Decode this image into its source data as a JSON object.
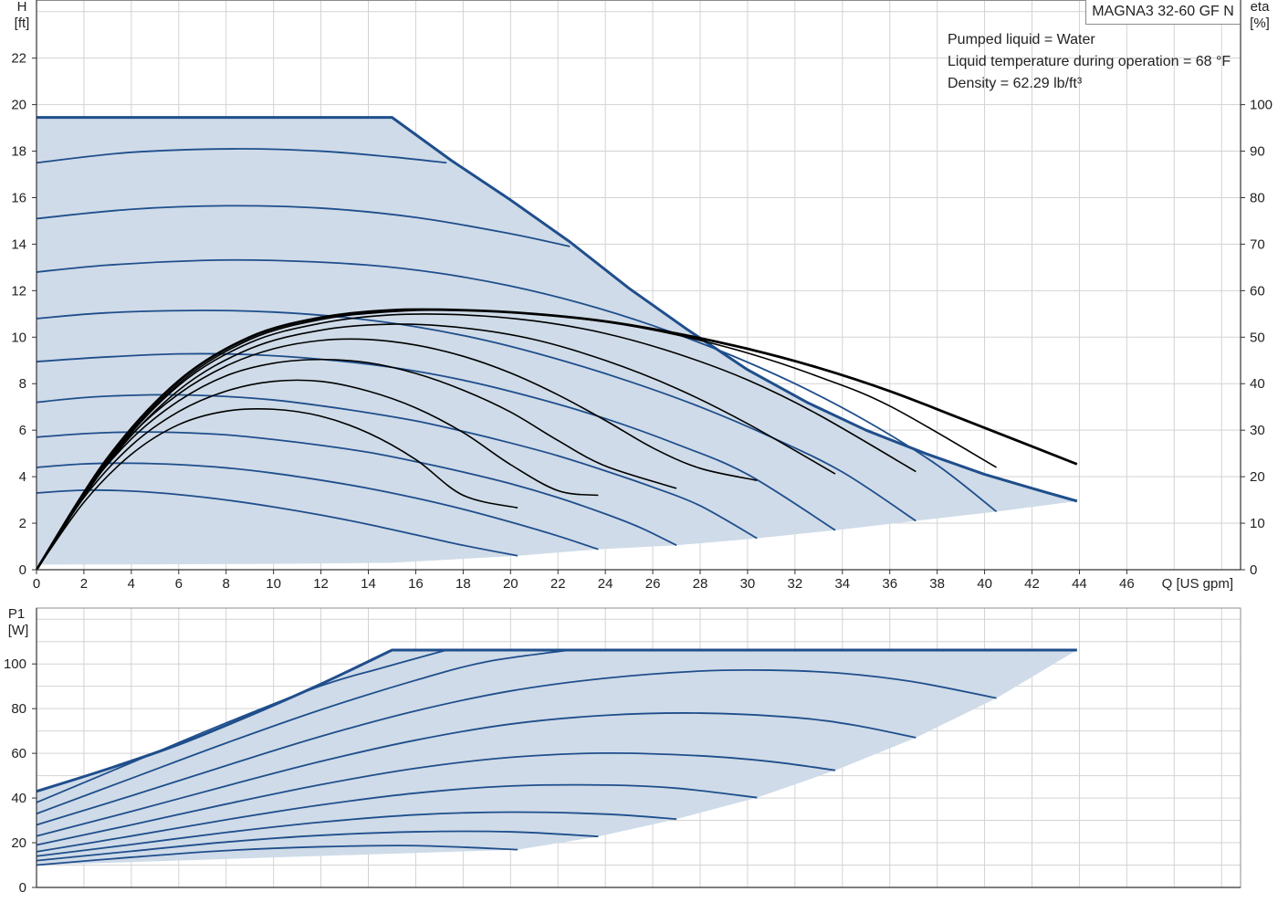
{
  "model": "MAGNA3 32-60 GF N",
  "conditions": [
    "Pumped liquid = Water",
    "Liquid temperature during operation = 68 °F",
    "Density = 62.29 lb/ft³"
  ],
  "colors": {
    "curve": "#1f4e8c",
    "fill": "#cfdbe8",
    "eff_curve": "#000000",
    "grid": "#d3d3d3",
    "frame": "#8c8c8c"
  },
  "chart_data": [
    {
      "type": "line",
      "name": "head",
      "ylabel_lines": [
        "H",
        "[ft]"
      ],
      "y2label_lines": [
        "eta",
        "[%]"
      ],
      "xlabel": "Q [US gpm]",
      "x_ticks": [
        "0",
        "2",
        "4",
        "6",
        "8",
        "10",
        "12",
        "14",
        "16",
        "18",
        "20",
        "22",
        "24",
        "26",
        "28",
        "30",
        "32",
        "34",
        "36",
        "38",
        "40",
        "42",
        "44",
        "46"
      ],
      "y_ticks": [
        "0",
        "2",
        "4",
        "6",
        "8",
        "10",
        "12",
        "14",
        "16",
        "18",
        "20",
        "22"
      ],
      "y2_ticks": [
        "0",
        "10",
        "20",
        "30",
        "40",
        "50",
        "60",
        "70",
        "80",
        "90",
        "100"
      ],
      "xlim": [
        0,
        50.8
      ],
      "ylim": [
        0,
        24.5
      ],
      "y2lim": [
        0,
        122.5
      ],
      "grid": true,
      "max_curve": [
        [
          0,
          19.45
        ],
        [
          15.0,
          19.45
        ],
        [
          17.5,
          17.6
        ],
        [
          20,
          15.9
        ],
        [
          22.5,
          14.1
        ],
        [
          25,
          12.1
        ],
        [
          27.5,
          10.3
        ],
        [
          30,
          8.6
        ],
        [
          32.5,
          7.2
        ],
        [
          35,
          6.0
        ],
        [
          37.5,
          5.0
        ],
        [
          40,
          4.1
        ],
        [
          42,
          3.5
        ],
        [
          43.9,
          2.95
        ]
      ],
      "min_curve": [
        [
          0,
          0.22
        ],
        [
          5,
          0.23
        ],
        [
          10,
          0.25
        ],
        [
          15,
          0.3
        ],
        [
          20.3,
          0.6
        ],
        [
          23.7,
          0.88
        ],
        [
          27,
          1.05
        ],
        [
          30.4,
          1.35
        ],
        [
          33.7,
          1.7
        ],
        [
          37.1,
          2.1
        ],
        [
          40.5,
          2.5
        ],
        [
          43.9,
          2.95
        ]
      ],
      "series": [
        {
          "name": "",
          "x": [
            0,
            2,
            4,
            6,
            8,
            10,
            12,
            14,
            16,
            18,
            20.3
          ],
          "y": [
            3.3,
            3.42,
            3.38,
            3.23,
            3.0,
            2.7,
            2.35,
            1.95,
            1.5,
            1.05,
            0.6
          ]
        },
        {
          "name": "",
          "x": [
            0,
            2,
            4,
            6,
            8,
            10,
            12,
            14,
            16,
            18,
            20,
            22,
            23.7
          ],
          "y": [
            4.4,
            4.55,
            4.58,
            4.52,
            4.38,
            4.15,
            3.85,
            3.5,
            3.08,
            2.6,
            2.05,
            1.45,
            0.88
          ]
        },
        {
          "name": "",
          "x": [
            0,
            2,
            4,
            6,
            8,
            10,
            12,
            14,
            16,
            18,
            20,
            22,
            24,
            25.5,
            27
          ],
          "y": [
            5.7,
            5.85,
            5.92,
            5.9,
            5.8,
            5.6,
            5.35,
            5.05,
            4.65,
            4.2,
            3.7,
            3.1,
            2.4,
            1.8,
            1.05
          ]
        },
        {
          "name": "",
          "x": [
            0,
            2,
            4,
            6,
            8,
            10,
            12,
            14,
            16,
            18,
            20,
            22,
            24,
            26,
            28,
            30.4
          ],
          "y": [
            7.2,
            7.4,
            7.5,
            7.52,
            7.45,
            7.3,
            7.05,
            6.75,
            6.4,
            5.95,
            5.45,
            4.9,
            4.25,
            3.55,
            2.75,
            1.35
          ]
        },
        {
          "name": "",
          "x": [
            0,
            3,
            6,
            9,
            12,
            15,
            18,
            21,
            24,
            27,
            30,
            33.7
          ],
          "y": [
            8.95,
            9.15,
            9.28,
            9.25,
            9.05,
            8.7,
            8.15,
            7.4,
            6.5,
            5.4,
            4.1,
            1.7
          ]
        },
        {
          "name": "",
          "x": [
            0,
            3,
            7,
            10,
            13,
            16,
            19,
            22,
            25,
            28,
            31,
            34,
            37.1
          ],
          "y": [
            10.8,
            11.05,
            11.15,
            11.08,
            10.85,
            10.45,
            9.85,
            9.05,
            8.1,
            7.0,
            5.7,
            4.2,
            2.1
          ]
        },
        {
          "name": "",
          "x": [
            0,
            3,
            7,
            10,
            14,
            17,
            20,
            23,
            26,
            29,
            32,
            35,
            38,
            40.5
          ],
          "y": [
            12.8,
            13.1,
            13.3,
            13.3,
            13.1,
            12.75,
            12.2,
            11.45,
            10.5,
            9.35,
            8.0,
            6.4,
            4.5,
            2.5
          ]
        },
        {
          "name": "",
          "x": [
            0,
            4,
            8,
            12,
            16,
            20,
            22.5
          ],
          "y": [
            15.1,
            15.5,
            15.65,
            15.55,
            15.15,
            14.45,
            13.9
          ]
        },
        {
          "name": "",
          "x": [
            0,
            4,
            8.5,
            12,
            15,
            17.3
          ],
          "y": [
            17.5,
            17.95,
            18.1,
            18.0,
            17.75,
            17.5
          ]
        }
      ],
      "efficiency_series": [
        {
          "name": "",
          "x": [
            0,
            2,
            4,
            6,
            8,
            10,
            12,
            14,
            16,
            18,
            20.3
          ],
          "y": [
            0,
            14.5,
            24.8,
            31.2,
            34.1,
            34.5,
            33.0,
            29.4,
            23.7,
            16.0,
            13.3
          ]
        },
        {
          "name": "",
          "x": [
            0,
            2,
            4,
            6,
            8,
            10,
            12,
            14,
            16,
            18,
            20,
            22,
            23.7
          ],
          "y": [
            0,
            15.5,
            26.7,
            34.0,
            38.4,
            40.5,
            40.5,
            38.4,
            34.8,
            29.5,
            22.6,
            17.0,
            16.0
          ]
        },
        {
          "name": "",
          "x": [
            0,
            2,
            4,
            6,
            8,
            10,
            12,
            14,
            16,
            18,
            20,
            22,
            24,
            27
          ],
          "y": [
            0,
            16.2,
            28.1,
            36.3,
            41.7,
            44.4,
            45.2,
            44.5,
            42.2,
            38.6,
            33.9,
            27.8,
            22.3,
            17.5
          ]
        },
        {
          "name": "",
          "x": [
            0,
            2,
            4,
            6,
            8,
            10,
            12,
            14,
            16,
            18,
            20,
            22,
            24,
            26,
            28,
            30.4
          ],
          "y": [
            0,
            16.6,
            29.0,
            37.8,
            43.8,
            47.5,
            49.3,
            49.5,
            48.3,
            45.9,
            42.3,
            37.6,
            32.1,
            26.2,
            21.8,
            19.2
          ]
        },
        {
          "name": "",
          "x": [
            0,
            3,
            6,
            9,
            12,
            15,
            18,
            21,
            24,
            27,
            30,
            33.7
          ],
          "y": [
            0,
            22.8,
            38.6,
            47.5,
            51.5,
            52.8,
            52.0,
            49.5,
            45.0,
            39.0,
            31.4,
            20.6
          ]
        },
        {
          "name": "",
          "x": [
            0,
            3,
            6,
            9,
            12,
            15,
            18,
            21,
            24,
            27,
            30,
            33,
            37.1
          ],
          "y": [
            0,
            23.2,
            39.6,
            48.8,
            53.0,
            54.8,
            54.8,
            53.5,
            50.8,
            46.5,
            40.8,
            33.3,
            21.1
          ]
        },
        {
          "name": "",
          "x": [
            0,
            3,
            6,
            9,
            12,
            15,
            18,
            21,
            24,
            27,
            30,
            33,
            36,
            40.5
          ],
          "y": [
            0,
            23.5,
            40.0,
            49.5,
            53.8,
            55.5,
            55.8,
            55.0,
            53.3,
            50.5,
            46.6,
            41.5,
            35.2,
            22.0
          ]
        },
        {
          "name": "",
          "x": [
            0,
            3,
            6,
            9,
            12,
            15,
            18,
            21,
            24,
            27,
            30,
            33,
            36,
            39,
            43.9
          ],
          "y": [
            0,
            24.0,
            40.6,
            50.0,
            54.2,
            55.8,
            55.8,
            55.0,
            53.4,
            50.8,
            47.5,
            43.4,
            38.4,
            32.5,
            22.7
          ]
        }
      ]
    },
    {
      "type": "line",
      "name": "power",
      "ylabel_lines": [
        "P1",
        "[W]"
      ],
      "x_ticks": [
        "0",
        "2",
        "4",
        "6",
        "8",
        "10",
        "12",
        "14",
        "16",
        "18",
        "20",
        "22",
        "24",
        "26",
        "28",
        "30",
        "32",
        "34",
        "36",
        "38",
        "40",
        "42",
        "44",
        "46"
      ],
      "y_ticks": [
        "0",
        "20",
        "40",
        "60",
        "80",
        "100"
      ],
      "xlim": [
        0,
        50.8
      ],
      "ylim": [
        0,
        125
      ],
      "grid": true,
      "max_curve": [
        [
          0,
          43
        ],
        [
          3,
          53
        ],
        [
          6,
          64
        ],
        [
          9,
          77
        ],
        [
          12,
          91
        ],
        [
          15,
          106.2
        ],
        [
          43.9,
          106.2
        ]
      ],
      "min_curve": [
        [
          0,
          10
        ],
        [
          20.3,
          16.9
        ],
        [
          23.7,
          22.8
        ],
        [
          27,
          30.6
        ],
        [
          30.4,
          40.2
        ],
        [
          33.7,
          52.4
        ],
        [
          37.1,
          67
        ],
        [
          40.5,
          84.7
        ],
        [
          43.9,
          106.2
        ]
      ],
      "series": [
        {
          "name": "",
          "x": [
            0,
            4,
            8,
            12,
            16,
            20.3
          ],
          "y": [
            10,
            13.5,
            16.5,
            18.2,
            18.7,
            16.9
          ]
        },
        {
          "name": "",
          "x": [
            0,
            4,
            8,
            12,
            16,
            20,
            23.7
          ],
          "y": [
            12,
            16.2,
            20.3,
            23.3,
            24.9,
            24.9,
            22.8
          ]
        },
        {
          "name": "",
          "x": [
            0,
            4,
            8,
            12,
            16,
            20,
            24,
            27
          ],
          "y": [
            14,
            19.2,
            24.6,
            29.2,
            32.5,
            33.7,
            32.8,
            30.6
          ]
        },
        {
          "name": "",
          "x": [
            0,
            4,
            8,
            12,
            16,
            20,
            24,
            27,
            30.4
          ],
          "y": [
            16,
            23.0,
            30.3,
            36.9,
            42.2,
            45.4,
            45.8,
            44.4,
            40.2
          ]
        },
        {
          "name": "",
          "x": [
            0,
            4,
            8,
            12,
            16,
            20,
            24,
            28,
            31,
            33.7
          ],
          "y": [
            19,
            28.0,
            37.3,
            46.0,
            53.3,
            58.2,
            60.1,
            58.9,
            56.3,
            52.4
          ]
        },
        {
          "name": "",
          "x": [
            0,
            4,
            8,
            12,
            16,
            20,
            24,
            28,
            32,
            34.5,
            37.1
          ],
          "y": [
            23,
            34.0,
            45.4,
            56.4,
            65.9,
            73.1,
            77.0,
            78.0,
            76.0,
            72.6,
            67
          ]
        },
        {
          "name": "",
          "x": [
            0,
            4,
            8,
            12,
            16,
            20,
            24,
            28,
            31,
            34,
            37,
            40.5
          ],
          "y": [
            28,
            41.0,
            54.5,
            67.6,
            79.0,
            87.9,
            93.6,
            96.8,
            97.2,
            95.8,
            92.0,
            84.7
          ]
        },
        {
          "name": "",
          "x": [
            0,
            4,
            8,
            12,
            16,
            19,
            22.5
          ],
          "y": [
            33,
            48.8,
            64.6,
            79.5,
            92.7,
            101.0,
            106.2
          ]
        },
        {
          "name": "",
          "x": [
            0,
            4,
            8,
            12,
            14.5,
            17.3
          ],
          "y": [
            38,
            55.8,
            73.6,
            90.2,
            98.0,
            106.2
          ]
        }
      ]
    }
  ]
}
